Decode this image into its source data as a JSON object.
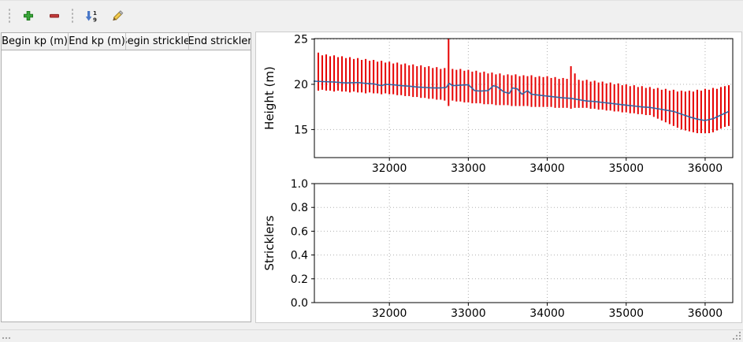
{
  "toolbar": {
    "buttons": [
      {
        "id": "add-row",
        "icon": "plus-icon"
      },
      {
        "id": "remove-row",
        "icon": "minus-icon"
      },
      {
        "id": "sort",
        "icon": "sort-1-9-icon"
      },
      {
        "id": "edit",
        "icon": "pencil-icon"
      }
    ]
  },
  "table": {
    "columns": [
      "Begin kp (m)",
      "End kp (m)",
      "Begin strickler",
      "End strickler"
    ],
    "rows": []
  },
  "chart_data": [
    {
      "type": "bar",
      "subtype": "minmax-range-bars-with-line",
      "title": "",
      "xlabel": "",
      "ylabel": "Height (m)",
      "xlim": [
        31050,
        36350
      ],
      "ylim": [
        11.9,
        25.05
      ],
      "xticks": [
        32000,
        33000,
        34000,
        35000,
        36000
      ],
      "xticklabels": [
        "32000",
        "33000",
        "34000",
        "35000",
        "36000"
      ],
      "yticks": [
        15,
        20,
        25
      ],
      "yticklabels": [
        "15",
        "20",
        "25"
      ],
      "grid": true,
      "bar_color": "#e60000",
      "line_color": "#3566a3",
      "bars": {
        "x_start": 31100,
        "x_step": 50,
        "ymax": [
          23.5,
          23.2,
          23.3,
          23.1,
          23.2,
          23.0,
          23.1,
          22.9,
          23.0,
          22.8,
          22.9,
          22.7,
          22.8,
          22.6,
          22.7,
          22.5,
          22.6,
          22.4,
          22.5,
          22.3,
          22.4,
          22.2,
          22.3,
          22.1,
          22.2,
          22.0,
          22.1,
          21.9,
          22.0,
          21.8,
          21.9,
          21.7,
          21.8,
          25.2,
          21.7,
          21.6,
          21.7,
          21.5,
          21.6,
          21.4,
          21.5,
          21.3,
          21.4,
          21.2,
          21.3,
          21.1,
          21.2,
          21.0,
          21.1,
          21.0,
          21.1,
          20.9,
          21.0,
          20.9,
          21.0,
          20.8,
          20.9,
          20.8,
          20.9,
          20.7,
          20.8,
          20.6,
          20.7,
          20.6,
          22.0,
          21.2,
          20.5,
          20.4,
          20.5,
          20.3,
          20.4,
          20.2,
          20.3,
          20.1,
          20.2,
          20.0,
          20.1,
          19.9,
          20.0,
          19.8,
          19.9,
          19.7,
          19.8,
          19.6,
          19.7,
          19.5,
          19.6,
          19.4,
          19.5,
          19.3,
          19.4,
          19.2,
          19.3,
          19.2,
          19.3,
          19.2,
          19.4,
          19.3,
          19.5,
          19.4,
          19.6,
          19.5,
          19.7,
          19.8,
          19.9
        ],
        "ymin": [
          19.3,
          19.4,
          19.3,
          19.3,
          19.2,
          19.3,
          19.2,
          19.2,
          19.1,
          19.2,
          19.1,
          19.1,
          19.0,
          19.1,
          19.0,
          19.0,
          18.9,
          19.0,
          18.9,
          18.9,
          18.8,
          18.8,
          18.7,
          18.7,
          18.6,
          18.6,
          18.5,
          18.5,
          18.4,
          18.4,
          18.3,
          18.3,
          18.2,
          17.6,
          18.2,
          18.1,
          18.1,
          18.0,
          18.0,
          17.9,
          17.9,
          17.9,
          17.8,
          17.8,
          17.8,
          17.7,
          17.7,
          17.7,
          17.7,
          17.6,
          17.6,
          17.6,
          17.6,
          17.6,
          17.5,
          17.5,
          17.5,
          17.5,
          17.5,
          17.5,
          17.4,
          17.4,
          17.4,
          17.4,
          17.3,
          17.4,
          17.4,
          17.4,
          17.4,
          17.3,
          17.3,
          17.2,
          17.2,
          17.1,
          17.1,
          17.0,
          17.0,
          16.9,
          16.9,
          16.8,
          16.8,
          16.7,
          16.7,
          16.6,
          16.6,
          16.4,
          16.2,
          16.0,
          15.8,
          15.6,
          15.4,
          15.2,
          15.0,
          14.9,
          14.8,
          14.7,
          14.6,
          14.6,
          14.6,
          14.6,
          14.7,
          14.9,
          15.1,
          15.3,
          15.4
        ]
      },
      "line": {
        "x": [
          31040,
          31150,
          31300,
          31450,
          31600,
          31700,
          31800,
          31900,
          31950,
          32050,
          32150,
          32250,
          32350,
          32450,
          32550,
          32650,
          32720,
          32760,
          32800,
          32900,
          33000,
          33080,
          33150,
          33250,
          33320,
          33370,
          33450,
          33520,
          33560,
          33620,
          33680,
          33750,
          33800,
          33900,
          34000,
          34100,
          34200,
          34300,
          34400,
          34500,
          34600,
          34700,
          34800,
          34900,
          35000,
          35100,
          35200,
          35300,
          35400,
          35500,
          35600,
          35700,
          35800,
          35900,
          36000,
          36100,
          36200,
          36300
        ],
        "y": [
          20.35,
          20.3,
          20.25,
          20.15,
          20.2,
          20.1,
          20.05,
          19.85,
          20.0,
          19.95,
          19.85,
          19.8,
          19.7,
          19.65,
          19.6,
          19.6,
          19.65,
          20.1,
          19.85,
          19.9,
          19.95,
          19.3,
          19.25,
          19.3,
          19.85,
          19.7,
          19.15,
          19.0,
          19.6,
          19.5,
          18.9,
          19.3,
          18.9,
          18.8,
          18.7,
          18.6,
          18.5,
          18.45,
          18.3,
          18.15,
          18.1,
          18.0,
          17.9,
          17.8,
          17.7,
          17.6,
          17.5,
          17.45,
          17.3,
          17.15,
          17.0,
          16.7,
          16.4,
          16.15,
          16.0,
          16.2,
          16.6,
          17.0
        ]
      }
    },
    {
      "type": "empty",
      "title": "",
      "xlabel": "",
      "ylabel": "Stricklers",
      "xlim": [
        31050,
        36350
      ],
      "ylim": [
        0,
        1
      ],
      "xticks": [
        32000,
        33000,
        34000,
        35000,
        36000
      ],
      "xticklabels": [
        "32000",
        "33000",
        "34000",
        "35000",
        "36000"
      ],
      "yticks": [
        0,
        0.2,
        0.4,
        0.6,
        0.8,
        1.0
      ],
      "yticklabels": [
        "0.0",
        "0.2",
        "0.4",
        "0.6",
        "0.8",
        "1.0"
      ],
      "grid": true
    }
  ],
  "colors": {
    "bar_red": "#e60000",
    "line_blue": "#3566a3",
    "grid_gray": "#b0b0b0",
    "panel_bg": "#f0f0f0"
  }
}
